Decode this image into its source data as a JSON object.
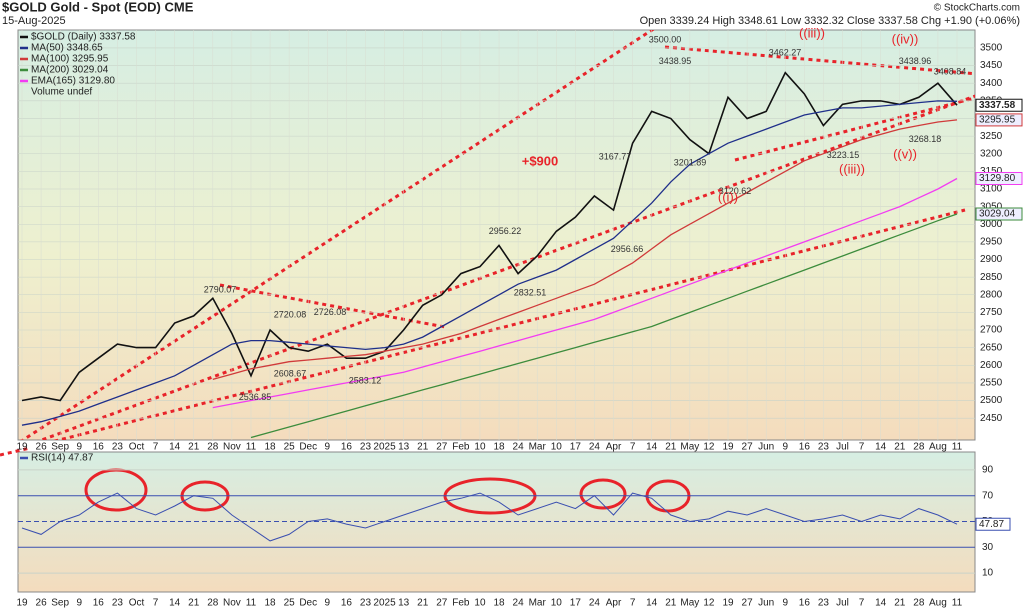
{
  "chart_data": {
    "type": "line",
    "title": "$GOLD Gold - Spot (EOD) CME",
    "date": "15-Aug-2025",
    "quote": "Open 3339.24 High 3348.61 Low 3332.32 Close 3337.58 Chg +1.90 (+0.06%)",
    "credit": "© StockCharts.com",
    "legend_note": "Volume undef",
    "categories": [
      "19",
      "26",
      "Sep",
      "9",
      "16",
      "23",
      "Oct",
      "7",
      "14",
      "21",
      "28",
      "Nov",
      "11",
      "18",
      "25",
      "Dec",
      "9",
      "16",
      "23",
      "2025",
      "13",
      "21",
      "27",
      "Feb",
      "10",
      "18",
      "24",
      "Mar",
      "10",
      "17",
      "24",
      "Apr",
      "7",
      "14",
      "21",
      "May",
      "12",
      "19",
      "27",
      "Jun",
      "9",
      "16",
      "23",
      "Jul",
      "7",
      "14",
      "21",
      "28",
      "Aug",
      "11"
    ],
    "ylim": [
      2388,
      3551
    ],
    "yticks": [
      2450,
      2500,
      2550,
      2600,
      2650,
      2700,
      2750,
      2800,
      2850,
      2900,
      2950,
      3000,
      3050,
      3100,
      3150,
      3200,
      3250,
      3300,
      3350,
      3400,
      3450,
      3500
    ],
    "grid": true,
    "series": [
      {
        "name": "$GOLD (Daily) 3337.58",
        "color": "#111111",
        "end_label": "3337.58",
        "values": [
          2500,
          2510,
          2500,
          2580,
          2620,
          2660,
          2650,
          2650,
          2720,
          2740,
          2790,
          2690,
          2570,
          2700,
          2650,
          2640,
          2660,
          2620,
          2620,
          2640,
          2700,
          2770,
          2800,
          2860,
          2880,
          2940,
          2860,
          2910,
          2980,
          3020,
          3080,
          3040,
          3230,
          3320,
          3300,
          3240,
          3200,
          3360,
          3300,
          3320,
          3430,
          3370,
          3280,
          3340,
          3350,
          3350,
          3340,
          3360,
          3400,
          3337.58
        ]
      },
      {
        "name": "MA(50) 3348.65",
        "color": "#1f2f8a",
        "values": [
          2430,
          2440,
          2455,
          2470,
          2490,
          2510,
          2530,
          2550,
          2570,
          2600,
          2630,
          2660,
          2670,
          2670,
          2665,
          2660,
          2655,
          2650,
          2645,
          2650,
          2660,
          2680,
          2710,
          2740,
          2770,
          2800,
          2830,
          2850,
          2870,
          2900,
          2930,
          2960,
          3010,
          3060,
          3120,
          3170,
          3200,
          3230,
          3250,
          3270,
          3290,
          3310,
          3320,
          3330,
          3330,
          3335,
          3340,
          3345,
          3350,
          3348.65
        ]
      },
      {
        "name": "MA(100) 3295.95",
        "color": "#d03a3a",
        "end_label": "3295.95",
        "values": [
          null,
          null,
          null,
          null,
          null,
          null,
          null,
          null,
          null,
          null,
          2560,
          2575,
          2590,
          2600,
          2610,
          2615,
          2620,
          2625,
          2630,
          2640,
          2650,
          2660,
          2675,
          2690,
          2710,
          2730,
          2750,
          2770,
          2790,
          2810,
          2830,
          2860,
          2890,
          2930,
          2970,
          3000,
          3030,
          3060,
          3090,
          3120,
          3150,
          3180,
          3200,
          3220,
          3240,
          3255,
          3270,
          3280,
          3290,
          3295.95
        ]
      },
      {
        "name": "MA(200) 3029.04",
        "color": "#3c8c3c",
        "end_label": "3029.04",
        "values": [
          null,
          null,
          null,
          null,
          null,
          null,
          null,
          null,
          null,
          null,
          null,
          null,
          2395,
          2410,
          2425,
          2440,
          2455,
          2470,
          2485,
          2500,
          2515,
          2530,
          2545,
          2560,
          2575,
          2590,
          2605,
          2620,
          2635,
          2650,
          2665,
          2680,
          2695,
          2710,
          2730,
          2750,
          2770,
          2790,
          2810,
          2830,
          2850,
          2870,
          2890,
          2910,
          2930,
          2950,
          2970,
          2990,
          3010,
          3029.04
        ]
      },
      {
        "name": "EMA(165) 3129.80",
        "color": "#f23cf2",
        "end_label": "3129.80",
        "values": [
          null,
          null,
          null,
          null,
          null,
          null,
          null,
          null,
          null,
          null,
          2480,
          2490,
          2500,
          2510,
          2520,
          2530,
          2540,
          2550,
          2560,
          2570,
          2580,
          2595,
          2610,
          2625,
          2640,
          2655,
          2670,
          2685,
          2700,
          2715,
          2730,
          2750,
          2770,
          2790,
          2810,
          2830,
          2850,
          2870,
          2890,
          2910,
          2930,
          2950,
          2970,
          2990,
          3010,
          3030,
          3050,
          3075,
          3100,
          3129.8
        ]
      }
    ],
    "annotations": [
      {
        "text": "2790.07",
        "value": 2790.07
      },
      {
        "text": "2720.08",
        "value": 2720.08
      },
      {
        "text": "2726.08",
        "value": 2726.08
      },
      {
        "text": "2608.67",
        "value": 2608.67
      },
      {
        "text": "2583.12",
        "value": 2583.12
      },
      {
        "text": "2536.85",
        "value": 2536.85
      },
      {
        "text": "2956.22",
        "value": 2956.22
      },
      {
        "text": "2832.51",
        "value": 2832.51
      },
      {
        "text": "3167.77",
        "value": 3167.77
      },
      {
        "text": "2956.66",
        "value": 2956.66
      },
      {
        "text": "3500.00",
        "value": 3500
      },
      {
        "text": "3438.95",
        "value": 3438.95
      },
      {
        "text": "3201.89",
        "value": 3201.89
      },
      {
        "text": "3120.62",
        "value": 3120.62
      },
      {
        "text": "3462.27",
        "value": 3462.27
      },
      {
        "text": "3223.15",
        "value": 3223.15
      },
      {
        "text": "3438.96",
        "value": 3438.96
      },
      {
        "text": "3408.84",
        "value": 3408.84
      },
      {
        "text": "3268.18",
        "value": 3268.18
      }
    ],
    "wave_labels": [
      "+$900",
      "((iii))",
      "((iv))",
      "((i))",
      "((iii))",
      "((v))"
    ],
    "rsi": {
      "name": "RSI(14) 47.87",
      "color": "#3a4fb0",
      "end_label": "47.87",
      "ylim": [
        0,
        100
      ],
      "yticks": [
        10,
        30,
        50,
        70,
        90
      ],
      "values": [
        45,
        40,
        50,
        55,
        65,
        72,
        60,
        55,
        62,
        70,
        68,
        55,
        45,
        35,
        40,
        50,
        52,
        48,
        45,
        50,
        55,
        60,
        65,
        68,
        72,
        65,
        55,
        60,
        65,
        60,
        70,
        55,
        72,
        68,
        55,
        50,
        52,
        58,
        55,
        60,
        55,
        50,
        52,
        55,
        50,
        55,
        52,
        60,
        55,
        47.87
      ]
    }
  }
}
